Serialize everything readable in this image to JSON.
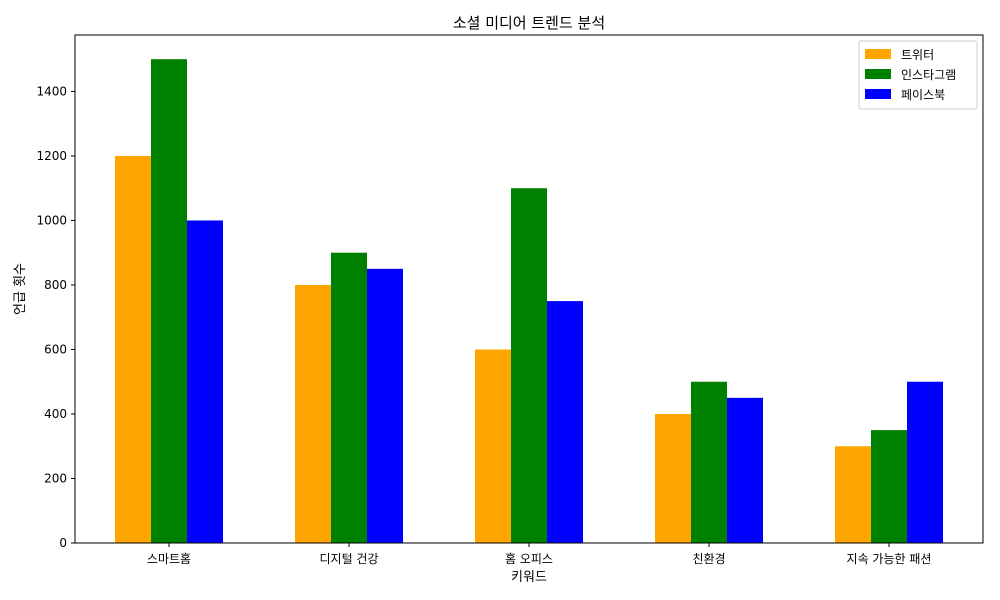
{
  "chart_data": {
    "type": "bar",
    "title": "소셜 미디어 트렌드 분석",
    "xlabel": "키워드",
    "ylabel": "언급 횟수",
    "categories": [
      "스마트홈",
      "디지털 건강",
      "홈 오피스",
      "친환경",
      "지속 가능한 패션"
    ],
    "series": [
      {
        "name": "트위터",
        "color": "#ffa500",
        "values": [
          1200,
          800,
          600,
          400,
          300
        ]
      },
      {
        "name": "인스타그램",
        "color": "#008000",
        "values": [
          1500,
          900,
          1100,
          500,
          350
        ]
      },
      {
        "name": "페이스북",
        "color": "#0000ff",
        "values": [
          1000,
          850,
          750,
          450,
          500
        ]
      }
    ],
    "ylim": [
      0,
      1575
    ],
    "yticks": [
      0,
      200,
      400,
      600,
      800,
      1000,
      1200,
      1400
    ],
    "grid": false,
    "legend_position": "top-right"
  }
}
